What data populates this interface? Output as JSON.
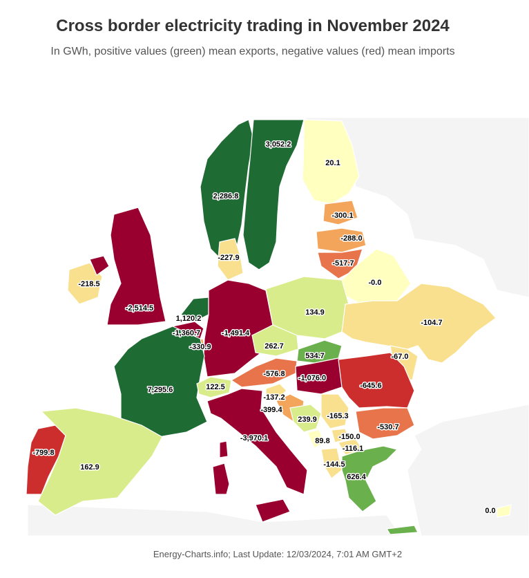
{
  "title": "Cross border electricity trading in November 2024",
  "subtitle": "In GWh, positive values (green) mean exports, negative values (red) mean imports",
  "footer": "Energy-Charts.info; Last Update: 12/03/2024, 7:01 AM GMT+2",
  "colors": {
    "dark_green": "#1e6b34",
    "light_green": "#d9ec8c",
    "yellow": "#ffffc0",
    "light_orange": "#f9e08e",
    "orange": "#f3a55c",
    "dark_orange": "#e7744a",
    "red": "#cc2e2e",
    "dark_red": "#990030",
    "no_data": "#f4f4f4"
  },
  "regions": [
    {
      "name": "Sweden",
      "value": 3052.2,
      "label": "3,052.2"
    },
    {
      "name": "Norway",
      "value": 2286.8,
      "label": "2,286.8"
    },
    {
      "name": "Finland",
      "value": 20.1,
      "label": "20.1"
    },
    {
      "name": "Estonia",
      "value": -300.1,
      "label": "-300.1"
    },
    {
      "name": "Latvia",
      "value": -288.0,
      "label": "-288.0"
    },
    {
      "name": "Lithuania",
      "value": -517.7,
      "label": "-517.7"
    },
    {
      "name": "Denmark",
      "value": -227.9,
      "label": "-227.9"
    },
    {
      "name": "Belarus",
      "value": 0.0,
      "label": "-0.0"
    },
    {
      "name": "Ireland",
      "value": -218.5,
      "label": "-218.5"
    },
    {
      "name": "United Kingdom",
      "value": -2514.5,
      "label": "-2,514.5"
    },
    {
      "name": "Netherlands",
      "value": 1120.2,
      "label": "1,120.2"
    },
    {
      "name": "Belgium",
      "value": -1360.7,
      "label": "-1,360.7"
    },
    {
      "name": "Luxembourg",
      "value": -330.9,
      "label": "-330.9"
    },
    {
      "name": "Germany",
      "value": -1491.4,
      "label": "-1,491.4"
    },
    {
      "name": "Poland",
      "value": 134.9,
      "label": "134.9"
    },
    {
      "name": "Ukraine",
      "value": -104.7,
      "label": "-104.7"
    },
    {
      "name": "Czech Republic",
      "value": 262.7,
      "label": "262.7"
    },
    {
      "name": "Slovakia",
      "value": 534.7,
      "label": "534.7"
    },
    {
      "name": "Moldova",
      "value": -67.0,
      "label": "-67.0"
    },
    {
      "name": "Austria",
      "value": -576.8,
      "label": "-576.8"
    },
    {
      "name": "Hungary",
      "value": -1076.0,
      "label": "-1,076.0"
    },
    {
      "name": "Romania",
      "value": -645.6,
      "label": "-645.6"
    },
    {
      "name": "France",
      "value": 7295.6,
      "label": "7,295.6"
    },
    {
      "name": "Switzerland",
      "value": 122.5,
      "label": "122.5"
    },
    {
      "name": "Slovenia",
      "value": -137.2,
      "label": "-137.2"
    },
    {
      "name": "Croatia",
      "value": -399.4,
      "label": "-399.4"
    },
    {
      "name": "Bosnia and Herzegovina",
      "value": 239.9,
      "label": "239.9"
    },
    {
      "name": "Serbia",
      "value": -165.3,
      "label": "-165.3"
    },
    {
      "name": "Bulgaria",
      "value": -530.7,
      "label": "-530.7"
    },
    {
      "name": "Montenegro",
      "value": 89.8,
      "label": "89.8"
    },
    {
      "name": "Kosovo",
      "value": -150.0,
      "label": "-150.0"
    },
    {
      "name": "North Macedonia",
      "value": -116.1,
      "label": "-116.1"
    },
    {
      "name": "Albania",
      "value": -144.5,
      "label": "-144.5"
    },
    {
      "name": "Greece",
      "value": 626.4,
      "label": "626.4"
    },
    {
      "name": "Italy",
      "value": -3970.1,
      "label": "-3,970.1"
    },
    {
      "name": "Portugal",
      "value": -799.8,
      "label": "-799.8"
    },
    {
      "name": "Spain",
      "value": 162.9,
      "label": "162.9"
    },
    {
      "name": "Turkey",
      "value": 0.0,
      "label": "0.0"
    }
  ]
}
